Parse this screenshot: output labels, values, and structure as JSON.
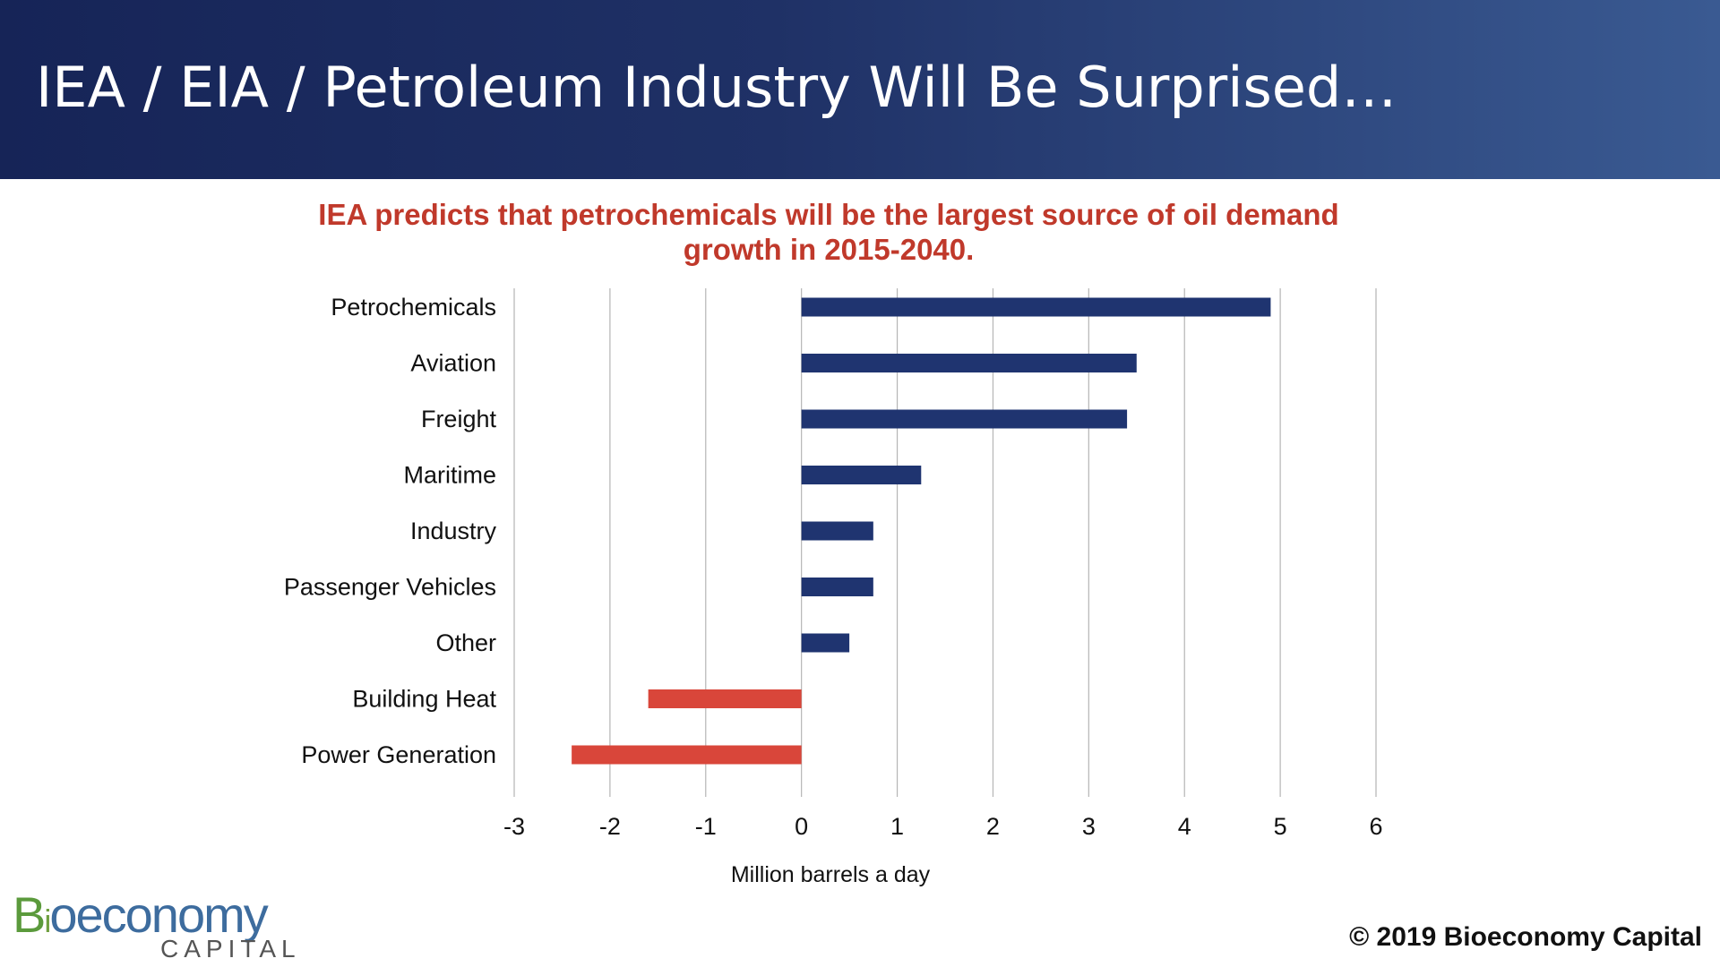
{
  "slide": {
    "title": "IEA / EIA / Petroleum Industry Will Be Surprised…",
    "copyright": "© 2019 Bioeconomy Capital",
    "logo": {
      "b": "B",
      "i": "i",
      "rest": "oeconomy",
      "sub": "CAPITAL"
    },
    "colors": {
      "header_start": "#162457",
      "header_end": "#3a5a92",
      "title_red": "#c0392b",
      "positive_bar": "#1f3470",
      "negative_bar": "#d9463a"
    }
  },
  "chart_data": {
    "type": "bar",
    "orientation": "horizontal",
    "title": "IEA predicts that petrochemicals will be the largest source of oil demand growth in 2015-2040.",
    "xlabel": "Million barrels a day",
    "ylabel": "",
    "categories": [
      "Petrochemicals",
      "Aviation",
      "Freight",
      "Maritime",
      "Industry",
      "Passenger Vehicles",
      "Other",
      "Building Heat",
      "Power Generation"
    ],
    "values": [
      4.9,
      3.5,
      3.4,
      1.25,
      0.75,
      0.75,
      0.5,
      -1.6,
      -2.4
    ],
    "xlim": [
      -3,
      6
    ],
    "xticks": [
      "-3",
      "-2",
      "-1",
      "0",
      "1",
      "2",
      "3",
      "4",
      "5",
      "6"
    ],
    "grid": true,
    "legend": "none"
  }
}
